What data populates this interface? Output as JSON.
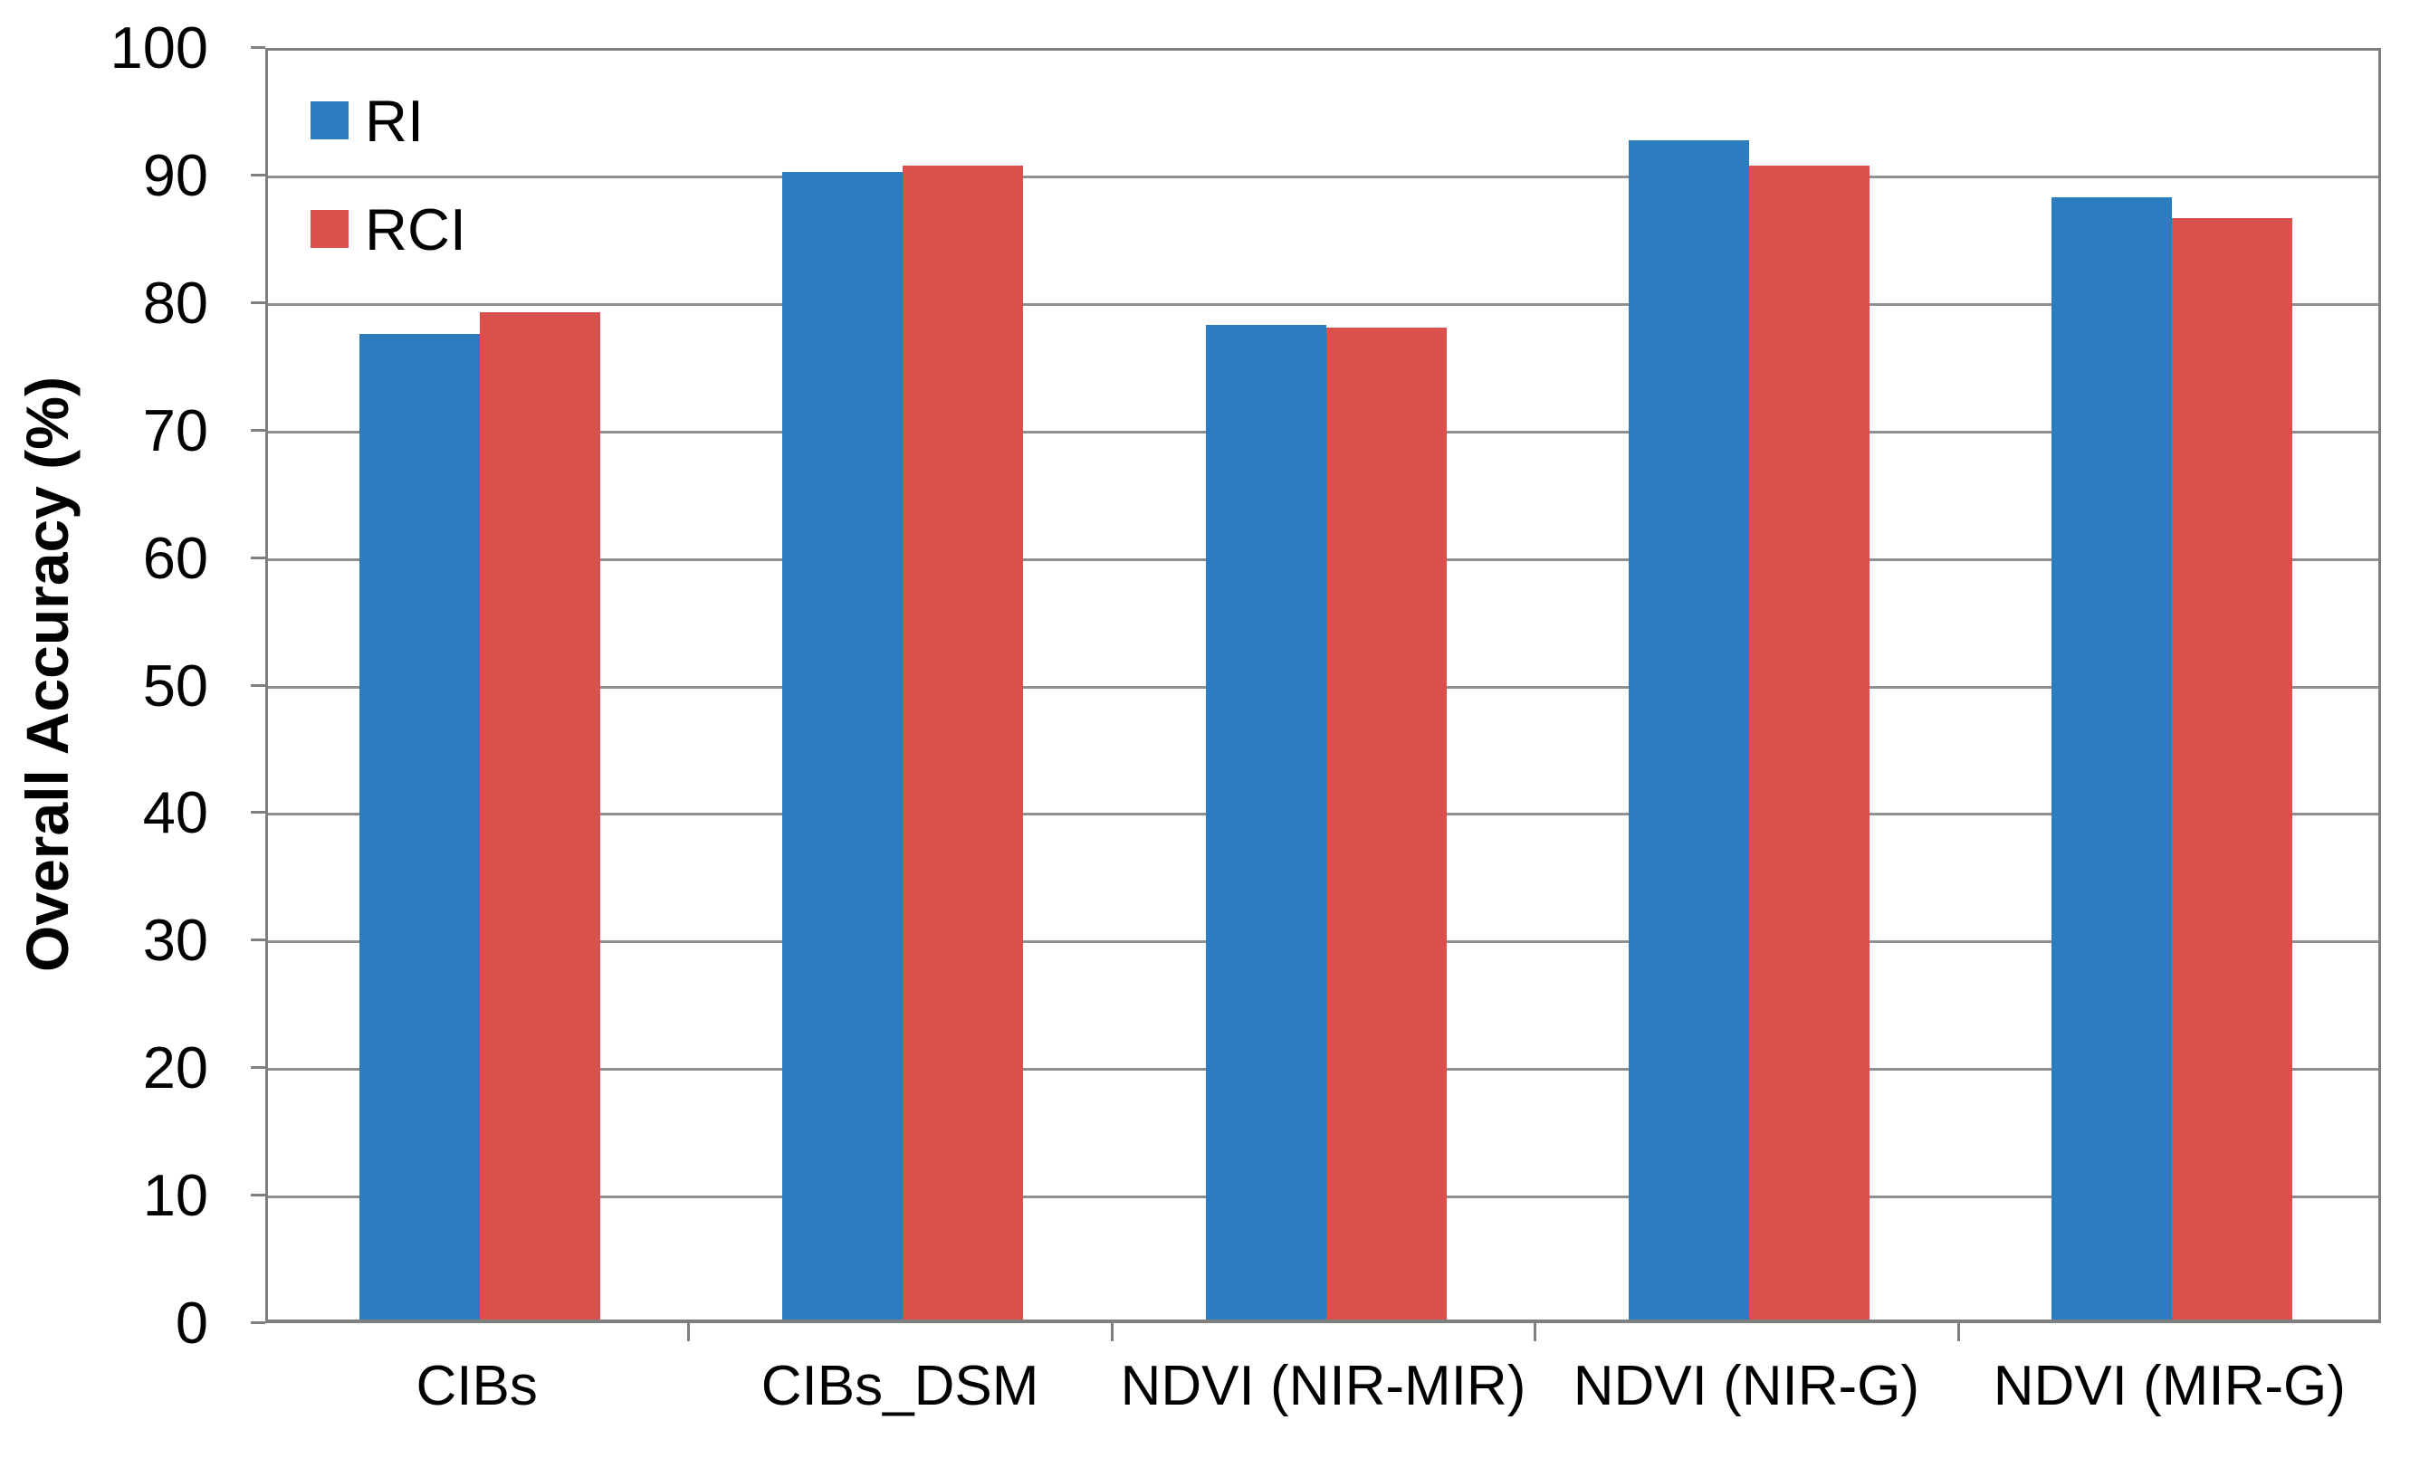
{
  "chart_data": {
    "type": "bar",
    "title": "",
    "xlabel": "",
    "ylabel": "Overall Accuracy (%)",
    "categories": [
      "CIBs",
      "CIBs_DSM",
      "NDVI (NIR-MIR)",
      "NDVI (NIR-G)",
      "NDVI (MIR-G)"
    ],
    "series": [
      {
        "name": "RI",
        "color": "#2B7DC0",
        "values": [
          77.3,
          90.0,
          78.0,
          92.5,
          88.0
        ]
      },
      {
        "name": "RCI",
        "color": "#D9504C",
        "values": [
          79.0,
          90.5,
          77.8,
          90.5,
          86.4
        ]
      }
    ],
    "ylim": [
      0,
      100
    ],
    "yticks": [
      0,
      10,
      20,
      30,
      40,
      50,
      60,
      70,
      80,
      90,
      100
    ],
    "grid": "horizontal",
    "legend_position": "top-left-inside"
  },
  "style": {
    "background": "#ffffff",
    "grid_color": "#8f8f8f",
    "axis_color": "#7f7f7f",
    "text_color": "#000000"
  }
}
